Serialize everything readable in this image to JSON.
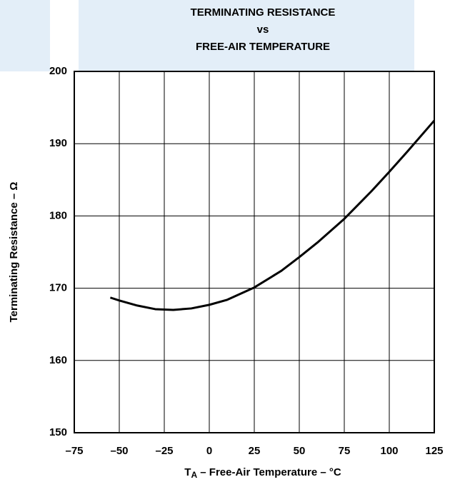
{
  "chart_data": {
    "type": "line",
    "title": [
      "TERMINATING RESISTANCE",
      "vs",
      "FREE-AIR TEMPERATURE"
    ],
    "x_label": {
      "symbol": "T",
      "subscript": "A",
      "text": " – Free-Air Temperature – °C"
    },
    "y_label": "Terminating Resistance – Ω",
    "x": [
      -55,
      -50,
      -40,
      -30,
      -20,
      -10,
      0,
      10,
      25,
      40,
      50,
      60,
      75,
      90,
      100,
      110,
      125
    ],
    "values": [
      168.7,
      168.3,
      167.6,
      167.1,
      167,
      167.2,
      167.7,
      168.4,
      170.1,
      172.4,
      174.3,
      176.3,
      179.6,
      183.4,
      186.1,
      188.9,
      193.2
    ],
    "color": "#000000",
    "xlim": [
      -75,
      125
    ],
    "xticks": [
      {
        "value": -75,
        "label": "–75"
      },
      {
        "value": -50,
        "label": "–50"
      },
      {
        "value": -25,
        "label": "–25"
      },
      0,
      25,
      50,
      75,
      100,
      125
    ],
    "ylim": [
      150,
      200
    ],
    "yticks": [
      150,
      160,
      170,
      180,
      190,
      200
    ],
    "grid": true
  }
}
